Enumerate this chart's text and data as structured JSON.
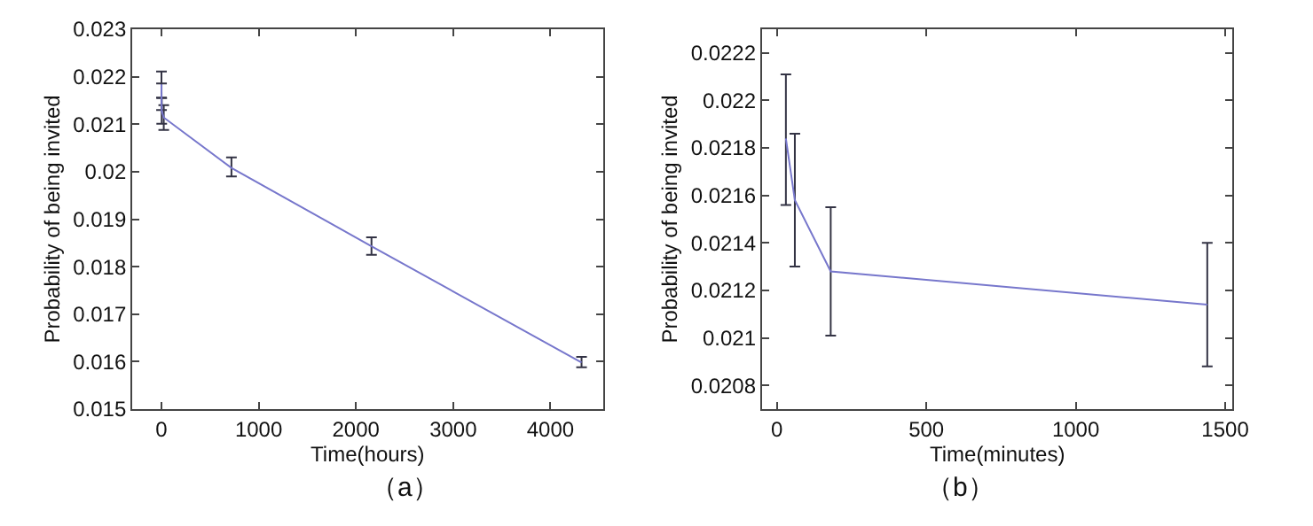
{
  "chart_data": [
    {
      "type": "line",
      "xlabel": "Time(hours)",
      "ylabel": "Probability of being invited",
      "annotations": [
        "（a）"
      ],
      "x": [
        0.5,
        1,
        3,
        24,
        720,
        2160,
        4320
      ],
      "series": [
        {
          "color": "#7777cc",
          "values": [
            0.02184,
            0.02158,
            0.02128,
            0.02114,
            0.02008,
            0.01843,
            0.01598
          ],
          "errors": [
            [
              0.02156,
              0.02211
            ],
            [
              0.0213,
              0.02186
            ],
            [
              0.02101,
              0.02155
            ],
            [
              0.02088,
              0.0214
            ],
            [
              0.0199,
              0.0203
            ],
            [
              0.01825,
              0.01862
            ],
            [
              0.01588,
              0.0161
            ]
          ]
        }
      ],
      "xlim": [
        -300,
        4540
      ],
      "xticks": [
        0,
        1000,
        2000,
        3000,
        4000
      ],
      "ylim": [
        0.015,
        0.023
      ],
      "yticks": [
        0.015,
        0.016,
        0.017,
        0.018,
        0.019,
        0.02,
        0.021,
        0.022,
        0.023
      ],
      "marker": "none",
      "line_style": "solid"
    },
    {
      "type": "line",
      "xlabel": "Time(minutes)",
      "ylabel": "Probability of being invited",
      "annotations": [
        "（b）"
      ],
      "x": [
        30,
        60,
        180,
        1440
      ],
      "series": [
        {
          "color": "#7777cc",
          "values": [
            0.02184,
            0.02158,
            0.02128,
            0.02114
          ],
          "errors": [
            [
              0.02156,
              0.02211
            ],
            [
              0.0213,
              0.02186
            ],
            [
              0.02101,
              0.02155
            ],
            [
              0.02088,
              0.0214
            ]
          ]
        }
      ],
      "xlim": [
        -50,
        1525
      ],
      "xticks": [
        0,
        500,
        1000,
        1500
      ],
      "ylim": [
        0.0207,
        0.0223
      ],
      "yticks": [
        0.0208,
        0.021,
        0.0212,
        0.0214,
        0.0216,
        0.0218,
        0.022,
        0.0222
      ],
      "marker": "none",
      "line_style": "solid"
    }
  ]
}
